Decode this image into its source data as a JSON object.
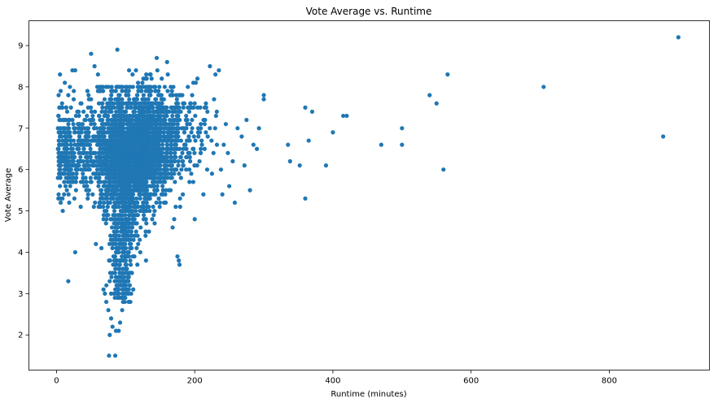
{
  "chart_data": {
    "type": "scatter",
    "title": "Vote Average vs. Runtime",
    "xlabel": "Runtime (minutes)",
    "ylabel": "Vote Average",
    "xlim": [
      -40,
      945
    ],
    "ylim": [
      1.15,
      9.6
    ],
    "xticks": [
      0,
      200,
      400,
      600,
      800
    ],
    "yticks": [
      2,
      3,
      4,
      5,
      6,
      7,
      8,
      9
    ],
    "grid": false,
    "legend": "none",
    "marker_color": "#1f77b4",
    "points": [
      [
        5,
        8.3
      ],
      [
        3,
        7.8
      ],
      [
        4,
        7.5
      ],
      [
        2,
        7.0
      ],
      [
        5,
        6.8
      ],
      [
        3,
        6.5
      ],
      [
        6,
        6.3
      ],
      [
        4,
        6.0
      ],
      [
        2,
        5.8
      ],
      [
        5,
        5.6
      ],
      [
        3,
        5.4
      ],
      [
        6,
        5.2
      ],
      [
        9,
        5.0
      ],
      [
        7,
        6.9
      ],
      [
        8,
        7.6
      ],
      [
        10,
        7.2
      ],
      [
        4,
        6.6
      ],
      [
        6,
        7.9
      ],
      [
        3,
        7.3
      ],
      [
        9,
        6.2
      ],
      [
        12,
        8.1
      ],
      [
        14,
        7.5
      ],
      [
        16,
        7.0
      ],
      [
        15,
        6.5
      ],
      [
        18,
        6.0
      ],
      [
        13,
        5.6
      ],
      [
        17,
        7.8
      ],
      [
        20,
        6.8
      ],
      [
        22,
        6.3
      ],
      [
        19,
        7.2
      ],
      [
        25,
        7.9
      ],
      [
        24,
        5.7
      ],
      [
        26,
        6.9
      ],
      [
        28,
        6.1
      ],
      [
        30,
        7.4
      ],
      [
        23,
        8.4
      ],
      [
        27,
        8.4
      ],
      [
        21,
        6.6
      ],
      [
        29,
        5.9
      ],
      [
        11,
        6.4
      ],
      [
        17,
        3.3
      ],
      [
        27,
        4.0
      ],
      [
        35,
        5.1
      ],
      [
        33,
        6.2
      ],
      [
        38,
        7.0
      ],
      [
        36,
        7.6
      ],
      [
        40,
        6.6
      ],
      [
        42,
        5.8
      ],
      [
        45,
        6.9
      ],
      [
        44,
        7.3
      ],
      [
        48,
        6.0
      ],
      [
        50,
        7.7
      ],
      [
        52,
        6.4
      ],
      [
        55,
        7.1
      ],
      [
        47,
        5.5
      ],
      [
        54,
        5.1
      ],
      [
        58,
        6.7
      ],
      [
        60,
        7.9
      ],
      [
        62,
        5.9
      ],
      [
        57,
        4.2
      ],
      [
        50,
        8.8
      ],
      [
        55,
        8.5
      ],
      [
        60,
        8.3
      ],
      [
        65,
        4.1
      ],
      [
        68,
        3.1
      ],
      [
        70,
        3.0
      ],
      [
        72,
        2.8
      ],
      [
        75,
        2.6
      ],
      [
        77,
        2.0
      ],
      [
        76,
        1.5
      ],
      [
        79,
        2.4
      ],
      [
        81,
        2.2
      ],
      [
        85,
        1.5
      ],
      [
        86,
        2.1
      ],
      [
        88,
        8.9
      ],
      [
        90,
        2.1
      ],
      [
        92,
        2.3
      ],
      [
        95,
        2.6
      ],
      [
        98,
        3.2
      ],
      [
        100,
        3.7
      ],
      [
        105,
        8.4
      ],
      [
        110,
        8.3
      ],
      [
        115,
        8.4
      ],
      [
        118,
        8.1
      ],
      [
        122,
        7.9
      ],
      [
        125,
        8.0
      ],
      [
        130,
        7.6
      ],
      [
        135,
        7.3
      ],
      [
        138,
        6.9
      ],
      [
        140,
        6.5
      ],
      [
        143,
        7.1
      ],
      [
        145,
        8.7
      ],
      [
        148,
        6.2
      ],
      [
        150,
        5.8
      ],
      [
        152,
        7.7
      ],
      [
        155,
        6.0
      ],
      [
        158,
        5.2
      ],
      [
        160,
        8.6
      ],
      [
        162,
        5.9
      ],
      [
        165,
        5.5
      ],
      [
        168,
        4.6
      ],
      [
        170,
        7.5
      ],
      [
        172,
        6.8
      ],
      [
        175,
        3.9
      ],
      [
        177,
        3.8
      ],
      [
        178,
        3.7
      ],
      [
        180,
        6.3
      ],
      [
        182,
        7.8
      ],
      [
        185,
        6.9
      ],
      [
        188,
        6.5
      ],
      [
        190,
        8.0
      ],
      [
        192,
        7.4
      ],
      [
        195,
        5.9
      ],
      [
        198,
        8.1
      ],
      [
        200,
        4.8
      ],
      [
        205,
        7.0
      ],
      [
        208,
        7.5
      ],
      [
        210,
        6.7
      ],
      [
        215,
        7.2
      ],
      [
        218,
        6.0
      ],
      [
        222,
        8.5
      ],
      [
        225,
        5.9
      ],
      [
        228,
        7.7
      ],
      [
        230,
        8.3
      ],
      [
        232,
        7.4
      ],
      [
        235,
        8.4
      ],
      [
        238,
        6.0
      ],
      [
        240,
        5.4
      ],
      [
        242,
        6.6
      ],
      [
        245,
        7.1
      ],
      [
        248,
        6.4
      ],
      [
        250,
        5.6
      ],
      [
        255,
        6.2
      ],
      [
        258,
        5.2
      ],
      [
        262,
        7.0
      ],
      [
        268,
        6.8
      ],
      [
        272,
        6.1
      ],
      [
        275,
        7.2
      ],
      [
        280,
        5.5
      ],
      [
        285,
        6.6
      ],
      [
        290,
        6.5
      ],
      [
        293,
        7.0
      ],
      [
        300,
        7.8
      ],
      [
        300,
        7.7
      ],
      [
        335,
        6.6
      ],
      [
        338,
        6.2
      ],
      [
        352,
        6.1
      ],
      [
        360,
        7.5
      ],
      [
        360,
        5.3
      ],
      [
        365,
        6.7
      ],
      [
        370,
        7.4
      ],
      [
        390,
        6.1
      ],
      [
        400,
        6.9
      ],
      [
        415,
        7.3
      ],
      [
        420,
        7.3
      ],
      [
        470,
        6.6
      ],
      [
        500,
        7.0
      ],
      [
        500,
        6.6
      ],
      [
        540,
        7.8
      ],
      [
        550,
        7.6
      ],
      [
        560,
        6.0
      ],
      [
        566,
        8.3
      ],
      [
        705,
        8.0
      ],
      [
        878,
        6.8
      ],
      [
        900,
        9.2
      ]
    ]
  }
}
